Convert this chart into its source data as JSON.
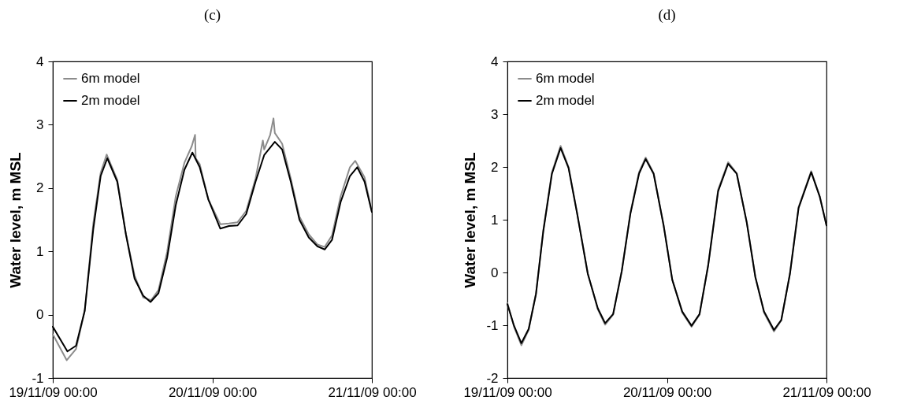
{
  "chart_data": [
    {
      "type": "line",
      "title": "(c)",
      "ylabel": "Water level, m MSL",
      "xlim": [
        "--11-19T00:00",
        "--11-21T00:00"
      ],
      "xticks": [
        {
          "value": "--11-19T00:00",
          "label": "19/11/09 00:00"
        },
        {
          "value": "--11-20T00:00",
          "label": "20/11/09 00:00"
        },
        {
          "value": "--11-21T00:00",
          "label": "21/11/09 00:00"
        }
      ],
      "ylim": [
        -1,
        4
      ],
      "yticks": [
        -1,
        0,
        1,
        2,
        3,
        4
      ],
      "grid": false,
      "legend": "top left",
      "marker": "none",
      "line_style": "solid",
      "series": [
        {
          "name": "6m model",
          "color": "#8c8c8c",
          "x": [
            "--11-19T00:00",
            "--11-19T02:06",
            "--11-19T03:30",
            "--11-19T04:48",
            "--11-19T06:06",
            "--11-19T07:12",
            "--11-19T08:06",
            "--11-19T09:42",
            "--11-19T11:00",
            "--11-19T12:18",
            "--11-19T13:36",
            "--11-19T14:48",
            "--11-19T15:54",
            "--11-19T17:12",
            "--11-19T18:30",
            "--11-19T19:48",
            "--11-19T20:54",
            "--11-19T21:24",
            "--11-19T21:30",
            "--11-19T22:06",
            "--11-19T23:24",
            "--11-20T01:12",
            "--11-20T02:30",
            "--11-20T03:48",
            "--11-20T05:06",
            "--11-20T06:30",
            "--11-20T07:36",
            "--11-20T07:48",
            "--11-20T08:42",
            "--11-20T09:12",
            "--11-20T09:24",
            "--11-20T10:30",
            "--11-20T11:48",
            "--11-20T13:06",
            "--11-20T14:30",
            "--11-20T15:48",
            "--11-20T16:54",
            "--11-20T18:00",
            "--11-20T19:18",
            "--11-20T20:42",
            "--11-20T21:30",
            "--11-20T22:54",
            "--11-21T00:00"
          ],
          "values": [
            -0.31,
            -0.72,
            -0.54,
            0.06,
            1.45,
            2.24,
            2.53,
            2.13,
            1.27,
            0.62,
            0.27,
            0.23,
            0.39,
            0.99,
            1.87,
            2.4,
            2.66,
            2.84,
            2.47,
            2.38,
            1.82,
            1.43,
            1.44,
            1.46,
            1.64,
            2.15,
            2.75,
            2.61,
            2.84,
            3.1,
            2.87,
            2.7,
            2.15,
            1.55,
            1.27,
            1.11,
            1.07,
            1.25,
            1.87,
            2.33,
            2.43,
            2.17,
            1.62
          ]
        },
        {
          "name": "2m model",
          "color": "#000000",
          "x": [
            "--11-19T00:00",
            "--11-19T02:12",
            "--11-19T03:30",
            "--11-19T04:48",
            "--11-19T06:06",
            "--11-19T07:12",
            "--11-19T08:12",
            "--11-19T09:42",
            "--11-19T11:00",
            "--11-19T12:18",
            "--11-19T13:36",
            "--11-19T14:42",
            "--11-19T15:54",
            "--11-19T17:12",
            "--11-19T18:30",
            "--11-19T19:48",
            "--11-19T21:00",
            "--11-19T22:06",
            "--11-19T23:24",
            "--11-20T01:12",
            "--11-20T02:30",
            "--11-20T03:48",
            "--11-20T05:06",
            "--11-20T06:30",
            "--11-20T07:48",
            "--11-20T09:24",
            "--11-20T10:30",
            "--11-20T11:48",
            "--11-20T13:06",
            "--11-20T14:30",
            "--11-20T15:48",
            "--11-20T16:54",
            "--11-20T18:00",
            "--11-20T19:18",
            "--11-20T20:42",
            "--11-20T21:48",
            "--11-20T22:54",
            "--11-21T00:00"
          ],
          "values": [
            -0.19,
            -0.58,
            -0.49,
            0.06,
            1.36,
            2.19,
            2.47,
            2.1,
            1.27,
            0.57,
            0.3,
            0.2,
            0.34,
            0.9,
            1.73,
            2.29,
            2.56,
            2.33,
            1.82,
            1.36,
            1.4,
            1.41,
            1.59,
            2.1,
            2.52,
            2.73,
            2.61,
            2.1,
            1.5,
            1.22,
            1.08,
            1.03,
            1.18,
            1.78,
            2.19,
            2.33,
            2.1,
            1.62
          ]
        }
      ]
    },
    {
      "type": "line",
      "title": "(d)",
      "ylabel": "Water level, m MSL",
      "xlim": [
        "--11-19T00:00",
        "--11-21T00:00"
      ],
      "xticks": [
        {
          "value": "--11-19T00:00",
          "label": "19/11/09 00:00"
        },
        {
          "value": "--11-20T00:00",
          "label": "20/11/09 00:00"
        },
        {
          "value": "--11-21T00:00",
          "label": "21/11/09 00:00"
        }
      ],
      "ylim": [
        -2,
        4
      ],
      "yticks": [
        -2,
        -1,
        0,
        1,
        2,
        3,
        4
      ],
      "grid": false,
      "legend": "top left",
      "marker": "none",
      "line_style": "solid",
      "x": [
        "--11-19T00:00",
        "--11-19T01:00",
        "--11-19T02:06",
        "--11-19T03:12",
        "--11-19T04:18",
        "--11-19T05:24",
        "--11-19T06:42",
        "--11-19T08:00",
        "--11-19T09:12",
        "--11-19T10:30",
        "--11-19T12:06",
        "--11-19T13:36",
        "--11-19T14:42",
        "--11-19T15:54",
        "--11-19T17:12",
        "--11-19T18:30",
        "--11-19T19:48",
        "--11-19T20:48",
        "--11-19T22:00",
        "--11-19T23:30",
        "--11-20T00:48",
        "--11-20T02:18",
        "--11-20T03:42",
        "--11-20T04:54",
        "--11-20T06:12",
        "--11-20T07:42",
        "--11-20T09:12",
        "--11-20T10:30",
        "--11-20T12:00",
        "--11-20T13:18",
        "--11-20T14:36",
        "--11-20T16:06",
        "--11-20T17:12",
        "--11-20T18:30",
        "--11-20T19:48",
        "--11-20T21:42",
        "--11-20T23:00",
        "--11-21T00:00"
      ],
      "series": [
        {
          "name": "6m model",
          "color": "#8c8c8c",
          "values": [
            -0.58,
            -1.03,
            -1.38,
            -1.09,
            -0.4,
            0.8,
            1.9,
            2.4,
            2.0,
            1.12,
            -0.02,
            -0.7,
            -0.99,
            -0.8,
            0.03,
            1.13,
            1.9,
            2.18,
            1.88,
            0.9,
            -0.13,
            -0.76,
            -1.03,
            -0.8,
            0.14,
            1.57,
            2.09,
            1.88,
            0.96,
            -0.08,
            -0.76,
            -1.12,
            -0.91,
            -0.02,
            1.24,
            1.92,
            1.44,
            0.89
          ]
        },
        {
          "name": "2m model",
          "color": "#000000",
          "values": [
            -0.6,
            -1.01,
            -1.34,
            -1.07,
            -0.41,
            0.78,
            1.87,
            2.36,
            1.98,
            1.11,
            -0.03,
            -0.68,
            -0.96,
            -0.79,
            0.02,
            1.11,
            1.87,
            2.15,
            1.87,
            0.89,
            -0.14,
            -0.74,
            -1.01,
            -0.79,
            0.13,
            1.54,
            2.06,
            1.87,
            0.95,
            -0.09,
            -0.74,
            -1.09,
            -0.9,
            -0.03,
            1.22,
            1.9,
            1.43,
            0.89
          ]
        }
      ]
    }
  ]
}
